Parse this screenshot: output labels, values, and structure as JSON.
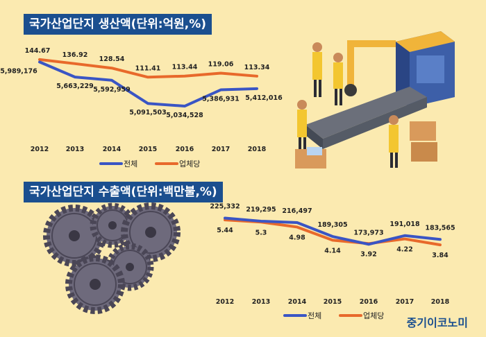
{
  "colors": {
    "total": "#3a55c4",
    "per_company": "#e8692b",
    "title_bg": "#1b4f8f",
    "background": "#fbeab0"
  },
  "brand": "중기이코노미",
  "chart_data": [
    {
      "type": "line",
      "title": "국가산업단지 생산액(단위:억원,%)",
      "categories": [
        "2012",
        "2013",
        "2014",
        "2015",
        "2016",
        "2017",
        "2018"
      ],
      "series": [
        {
          "name": "전체",
          "values": [
            5989176,
            5663229,
            5592959,
            5091503,
            5034528,
            5386931,
            5412016
          ],
          "labels": [
            "5,989,176",
            "5,663,229",
            "5,592,959",
            "5,091,503",
            "5,034,528",
            "5,386,931",
            "5,412,016"
          ]
        },
        {
          "name": "업체당",
          "values": [
            144.67,
            136.92,
            128.54,
            111.41,
            113.44,
            119.06,
            113.34
          ],
          "labels": [
            "144.67",
            "136.92",
            "128.54",
            "111.41",
            "113.44",
            "119.06",
            "113.34"
          ]
        }
      ]
    },
    {
      "type": "line",
      "title": "국가산업단지 수출액(단위:백만불,%)",
      "categories": [
        "2012",
        "2013",
        "2014",
        "2015",
        "2016",
        "2017",
        "2018"
      ],
      "series": [
        {
          "name": "전체",
          "values": [
            225332,
            219295,
            216497,
            189305,
            173973,
            191018,
            183565
          ],
          "labels": [
            "225,332",
            "219,295",
            "216,497",
            "189,305",
            "173,973",
            "191,018",
            "183,565"
          ]
        },
        {
          "name": "업체당",
          "values": [
            5.44,
            5.3,
            4.98,
            4.14,
            3.92,
            4.22,
            3.84
          ],
          "labels": [
            "5.44",
            "5.3",
            "4.98",
            "4.14",
            "3.92",
            "4.22",
            "3.84"
          ]
        }
      ]
    }
  ]
}
